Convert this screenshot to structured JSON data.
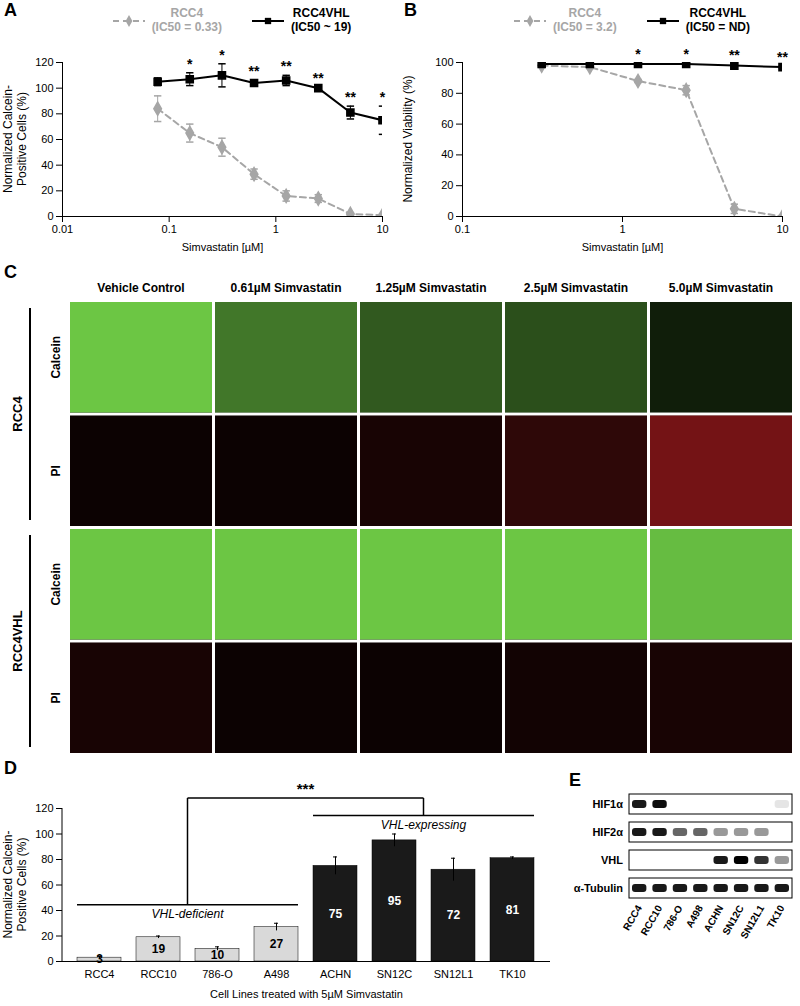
{
  "chart_data": [
    {
      "panel": "A",
      "type": "line",
      "log": "x",
      "legend": "top",
      "xlabel": "Simvastatin [µM]",
      "ylabel": [
        "Normalized Calcein-",
        "Positive Cells (%)"
      ],
      "x": [
        0.078,
        0.156,
        0.3125,
        0.625,
        1.25,
        2.5,
        5,
        10
      ],
      "xlim": [
        0.01,
        10
      ],
      "xticks": [
        0.01,
        0.1,
        1,
        10
      ],
      "ylim": [
        0,
        120
      ],
      "yticks": [
        0,
        20,
        40,
        60,
        80,
        100,
        120
      ],
      "series": [
        {
          "name": "RCC4",
          "legend_note": "(IC50 = 0.33)",
          "color": "#a6a6a6",
          "marker": "diamond",
          "line_style": "dashed",
          "values": [
            84,
            65,
            54,
            33,
            16,
            14,
            2,
            1
          ],
          "errors": [
            10,
            7,
            7,
            4,
            4,
            3,
            1,
            1
          ]
        },
        {
          "name": "RCC4VHL",
          "legend_note": "(IC50 ~ 19)",
          "color": "#000000",
          "marker": "square",
          "line_style": "solid",
          "values": [
            105,
            107,
            110,
            104,
            106,
            100,
            81,
            75
          ],
          "errors": [
            3,
            5,
            9,
            2,
            4,
            1,
            5,
            11
          ]
        }
      ],
      "significance": [
        null,
        "*",
        "*",
        "**",
        "**",
        "**",
        "**",
        "*"
      ]
    },
    {
      "panel": "B",
      "type": "line",
      "log": "x",
      "legend": "top",
      "xlabel": "Simvastatin [µM]",
      "ylabel": [
        "Normalized Viability (%)"
      ],
      "x": [
        0.3125,
        0.625,
        1.25,
        2.5,
        5,
        10
      ],
      "xlim": [
        0.1,
        10
      ],
      "xticks": [
        0.1,
        1,
        10
      ],
      "ylim": [
        0,
        100
      ],
      "yticks": [
        0,
        20,
        40,
        60,
        80,
        100
      ],
      "series": [
        {
          "name": "RCC4",
          "legend_note": "(IC50 = 3.2)",
          "color": "#a6a6a6",
          "marker": "diamond",
          "line_style": "dashed",
          "values": [
            98,
            97,
            88,
            82,
            5,
            0
          ],
          "errors": [
            0.5,
            1,
            1,
            3,
            3,
            0
          ]
        },
        {
          "name": "RCC4VHL",
          "legend_note": "(IC50 = ND)",
          "color": "#000000",
          "marker": "square",
          "line_style": "solid",
          "values": [
            99,
            99,
            99,
            99,
            98,
            97
          ],
          "errors": [
            1,
            1,
            1,
            1,
            1,
            1
          ]
        }
      ],
      "significance": [
        null,
        null,
        "*",
        "*",
        "**",
        "**"
      ]
    },
    {
      "panel": "D",
      "type": "bar",
      "data_labels": true,
      "xlabel": "Cell Lines treated with 5µM Simvastatin",
      "ylabel": [
        "Normalized Calcein-",
        "Positive Cells (%)"
      ],
      "categories": [
        "RCC4",
        "RCC10",
        "786-O",
        "A498",
        "ACHN",
        "SN12C",
        "SN12L1",
        "TK10"
      ],
      "values": [
        3,
        19,
        10,
        27,
        75,
        95,
        72,
        81
      ],
      "errors": [
        1,
        1,
        1.5,
        3,
        7,
        5,
        9,
        1
      ],
      "colors": [
        "#d9d9d9",
        "#d9d9d9",
        "#d9d9d9",
        "#d9d9d9",
        "#1a1a1a",
        "#1a1a1a",
        "#1a1a1a",
        "#1a1a1a"
      ],
      "ylim": [
        0,
        120
      ],
      "yticks": [
        0,
        20,
        40,
        60,
        80,
        100,
        120
      ],
      "groups": [
        {
          "label": "VHL-deficient",
          "categories": [
            "RCC4",
            "RCC10",
            "786-O",
            "A498"
          ]
        },
        {
          "label": "VHL-expressing",
          "categories": [
            "ACHN",
            "SN12C",
            "SN12L1",
            "TK10"
          ]
        }
      ],
      "significance": "***"
    }
  ],
  "images": {
    "panel": "C",
    "columns": [
      "Vehicle Control",
      "0.61µM Simvastatin",
      "1.25µM Simvastatin",
      "2.5µM Simvastatin",
      "5.0µM Simvastatin"
    ],
    "rows": [
      {
        "cell_line": "RCC4",
        "stain": "Calcein",
        "color": "#6cc644",
        "signal": [
          1,
          0.6,
          0.45,
          0.4,
          0.15
        ]
      },
      {
        "cell_line": "RCC4",
        "stain": "PI",
        "color": "#e8262a",
        "signal": [
          0.05,
          0.05,
          0.1,
          0.2,
          0.5
        ]
      },
      {
        "cell_line": "RCC4VHL",
        "stain": "Calcein",
        "color": "#6cc644",
        "signal": [
          1,
          1,
          1,
          1,
          0.95
        ]
      },
      {
        "cell_line": "RCC4VHL",
        "stain": "PI",
        "color": "#e8262a",
        "signal": [
          0.1,
          0.05,
          0.05,
          0.08,
          0.1
        ]
      }
    ]
  },
  "blot": {
    "panel": "E",
    "proteins": [
      "HIF1α",
      "HIF2α",
      "VHL",
      "α-Tubulin"
    ],
    "lanes": [
      "RCC4",
      "RCC10",
      "786-O",
      "A498",
      "ACHN",
      "SN12C",
      "SN12L1",
      "TK10"
    ],
    "bands": [
      [
        0.9,
        0.95,
        0,
        0,
        0,
        0,
        0,
        0.1
      ],
      [
        0.9,
        0.9,
        0.6,
        0.6,
        0.4,
        0.4,
        0.4,
        0
      ],
      [
        0,
        0,
        0,
        0,
        0.9,
        1,
        0.8,
        0.4
      ],
      [
        0.9,
        0.9,
        0.9,
        0.9,
        0.9,
        0.9,
        0.9,
        0.9
      ]
    ]
  }
}
